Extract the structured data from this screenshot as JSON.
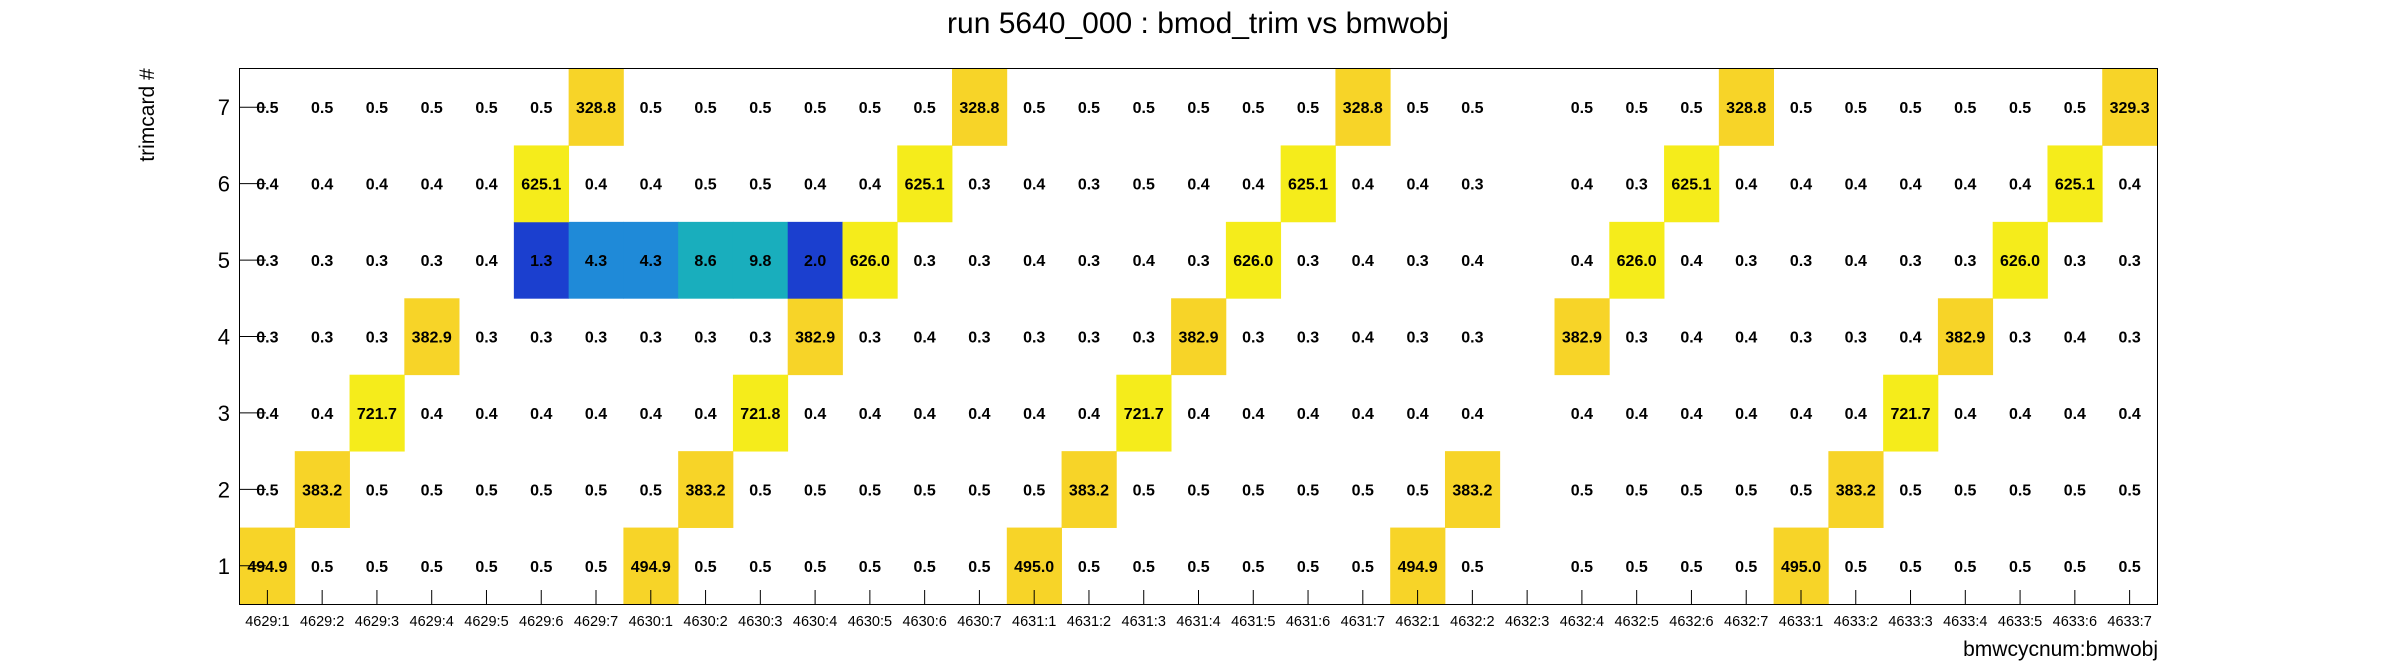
{
  "chart_data": {
    "type": "heatmap",
    "title": "run 5640_000 : bmod_trim vs bmwobj",
    "xlabel": "bmwcycnum:bmwobj",
    "ylabel": "trimcard #",
    "x_categories": [
      "4629:1",
      "4629:2",
      "4629:3",
      "4629:4",
      "4629:5",
      "4629:6",
      "4629:7",
      "4630:1",
      "4630:2",
      "4630:3",
      "4630:4",
      "4630:5",
      "4630:6",
      "4630:7",
      "4631:1",
      "4631:2",
      "4631:3",
      "4631:4",
      "4631:5",
      "4631:6",
      "4631:7",
      "4632:1",
      "4632:2",
      "4632:3",
      "4632:4",
      "4632:5",
      "4632:6",
      "4632:7",
      "4633:1",
      "4633:2",
      "4633:3",
      "4633:4",
      "4633:5",
      "4633:6",
      "4633:7"
    ],
    "y_categories": [
      "1",
      "2",
      "3",
      "4",
      "5",
      "6",
      "7"
    ],
    "rows": [
      [
        "494.9",
        "0.5",
        "0.5",
        "0.5",
        "0.5",
        "0.5",
        "0.5",
        "494.9",
        "0.5",
        "0.5",
        "0.5",
        "0.5",
        "0.5",
        "0.5",
        "495.0",
        "0.5",
        "0.5",
        "0.5",
        "0.5",
        "0.5",
        "0.5",
        "494.9",
        "0.5",
        "",
        "0.5",
        "0.5",
        "0.5",
        "0.5",
        "495.0",
        "0.5",
        "0.5",
        "0.5",
        "0.5",
        "0.5",
        "0.5"
      ],
      [
        "0.5",
        "383.2",
        "0.5",
        "0.5",
        "0.5",
        "0.5",
        "0.5",
        "0.5",
        "383.2",
        "0.5",
        "0.5",
        "0.5",
        "0.5",
        "0.5",
        "0.5",
        "383.2",
        "0.5",
        "0.5",
        "0.5",
        "0.5",
        "0.5",
        "0.5",
        "383.2",
        "",
        "0.5",
        "0.5",
        "0.5",
        "0.5",
        "0.5",
        "383.2",
        "0.5",
        "0.5",
        "0.5",
        "0.5",
        "0.5"
      ],
      [
        "0.4",
        "0.4",
        "721.7",
        "0.4",
        "0.4",
        "0.4",
        "0.4",
        "0.4",
        "0.4",
        "721.8",
        "0.4",
        "0.4",
        "0.4",
        "0.4",
        "0.4",
        "0.4",
        "721.7",
        "0.4",
        "0.4",
        "0.4",
        "0.4",
        "0.4",
        "0.4",
        "",
        "0.4",
        "0.4",
        "0.4",
        "0.4",
        "0.4",
        "0.4",
        "721.7",
        "0.4",
        "0.4",
        "0.4",
        "0.4"
      ],
      [
        "0.3",
        "0.3",
        "0.3",
        "382.9",
        "0.3",
        "0.3",
        "0.3",
        "0.3",
        "0.3",
        "0.3",
        "382.9",
        "0.3",
        "0.4",
        "0.3",
        "0.3",
        "0.3",
        "0.3",
        "382.9",
        "0.3",
        "0.3",
        "0.4",
        "0.3",
        "0.3",
        "",
        "382.9",
        "0.3",
        "0.4",
        "0.4",
        "0.3",
        "0.3",
        "0.4",
        "382.9",
        "0.3",
        "0.4",
        "0.3"
      ],
      [
        "0.3",
        "0.3",
        "0.3",
        "0.3",
        "0.4",
        "1.3",
        "4.3",
        "4.3",
        "8.6",
        "9.8",
        "2.0",
        "626.0",
        "0.3",
        "0.3",
        "0.4",
        "0.3",
        "0.4",
        "0.3",
        "626.0",
        "0.3",
        "0.4",
        "0.3",
        "0.4",
        "",
        "0.4",
        "626.0",
        "0.4",
        "0.3",
        "0.3",
        "0.4",
        "0.3",
        "0.3",
        "626.0",
        "0.3",
        "0.3"
      ],
      [
        "0.4",
        "0.4",
        "0.4",
        "0.4",
        "0.4",
        "625.1",
        "0.4",
        "0.4",
        "0.5",
        "0.5",
        "0.4",
        "0.4",
        "625.1",
        "0.3",
        "0.4",
        "0.3",
        "0.5",
        "0.4",
        "0.4",
        "625.1",
        "0.4",
        "0.4",
        "0.3",
        "",
        "0.4",
        "0.3",
        "625.1",
        "0.4",
        "0.4",
        "0.4",
        "0.4",
        "0.4",
        "0.4",
        "625.1",
        "0.4"
      ],
      [
        "0.5",
        "0.5",
        "0.5",
        "0.5",
        "0.5",
        "0.5",
        "328.8",
        "0.5",
        "0.5",
        "0.5",
        "0.5",
        "0.5",
        "0.5",
        "328.8",
        "0.5",
        "0.5",
        "0.5",
        "0.5",
        "0.5",
        "0.5",
        "328.8",
        "0.5",
        "0.5",
        "",
        "0.5",
        "0.5",
        "0.5",
        "328.8",
        "0.5",
        "0.5",
        "0.5",
        "0.5",
        "0.5",
        "0.5",
        "329.3"
      ]
    ],
    "colors": {
      "min": "#1b3fcf",
      "low": "#1f8ad8",
      "mid": "#19aebd",
      "yellow_high": "#f5ec1b",
      "yellow_low": "#f7d428",
      "background": "#ffffff",
      "frame": "#000000"
    }
  }
}
